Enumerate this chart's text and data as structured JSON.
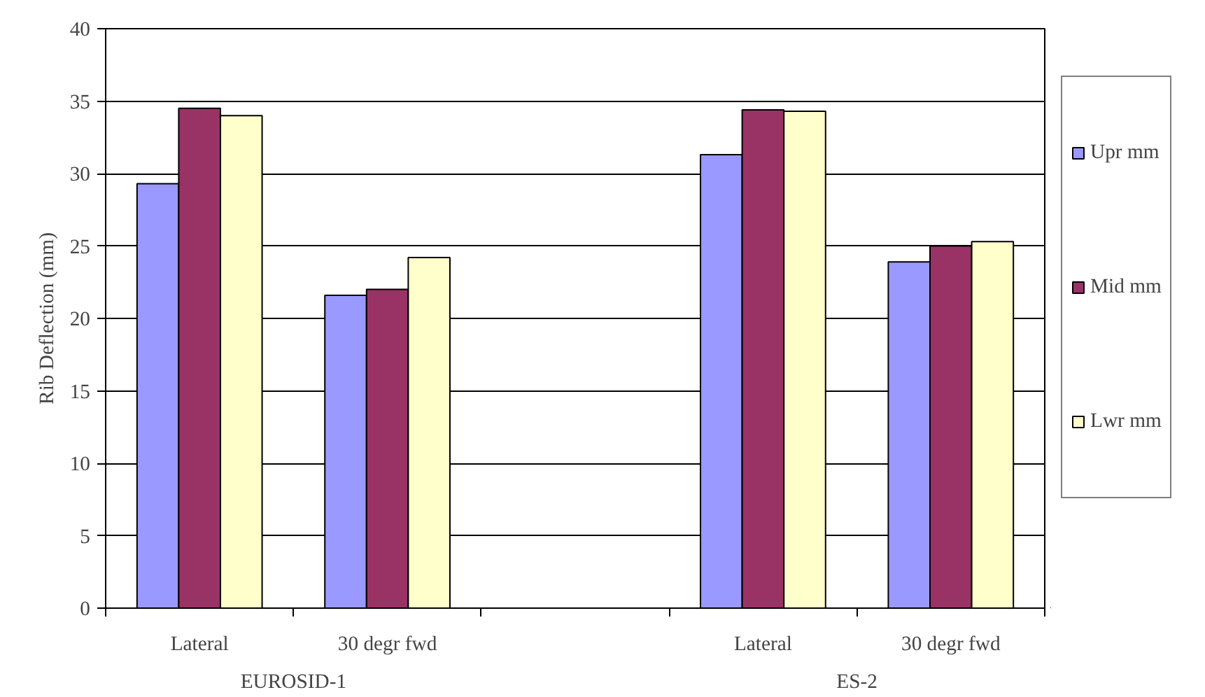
{
  "chart_data": {
    "type": "bar",
    "ylabel": "Rib Deflection (mm)",
    "categories": [
      "Lateral",
      "30 degr fwd",
      null,
      "Lateral",
      "30 degr fwd"
    ],
    "series": [
      {
        "name": "Upr mm",
        "color": "#9999ff",
        "values": [
          29.3,
          21.6,
          null,
          31.3,
          23.9
        ]
      },
      {
        "name": "Mid mm",
        "color": "#993366",
        "values": [
          34.5,
          22.0,
          null,
          34.4,
          25.0
        ]
      },
      {
        "name": "Lwr mm",
        "color": "#ffffcc",
        "values": [
          34.0,
          24.2,
          null,
          34.3,
          25.3
        ]
      }
    ],
    "annotations": [
      "EUROSID-1",
      "ES-2"
    ],
    "ylim": [
      0,
      40
    ],
    "yticks": [
      0,
      5,
      10,
      15,
      20,
      25,
      30,
      35,
      40
    ],
    "grid": "y",
    "legend": "right"
  }
}
